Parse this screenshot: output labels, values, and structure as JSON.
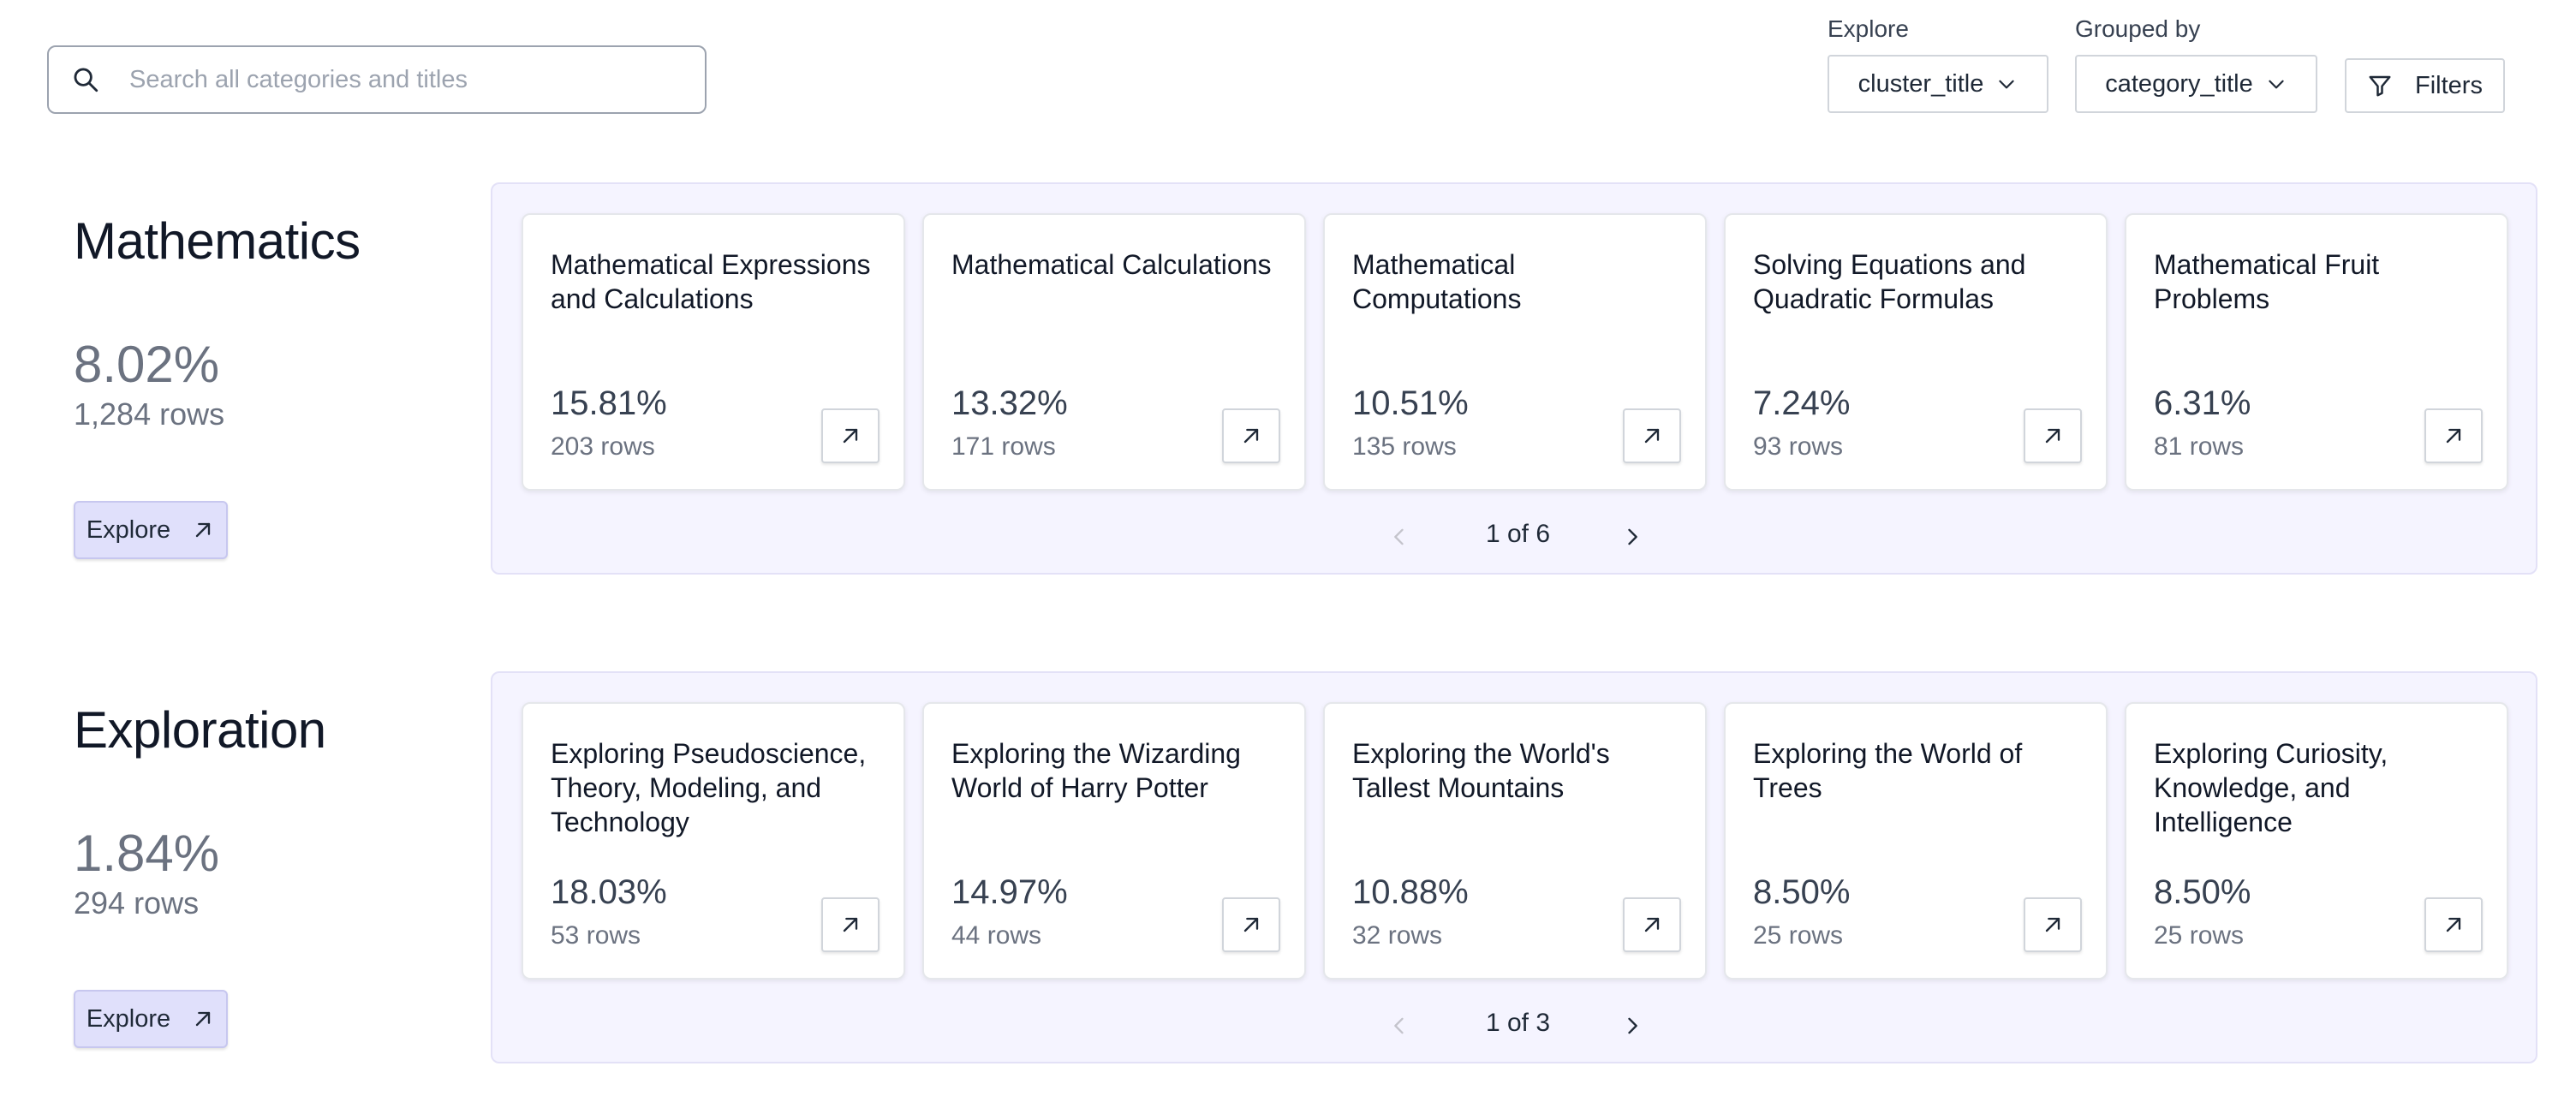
{
  "search": {
    "placeholder": "Search all categories and titles",
    "icon": "search-icon"
  },
  "controls": {
    "explore": {
      "label": "Explore",
      "value": "cluster_title"
    },
    "grouped_by": {
      "label": "Grouped by",
      "value": "category_title"
    },
    "filters_label": "Filters"
  },
  "sections": [
    {
      "title": "Mathematics",
      "percent": "8.02%",
      "rows": "1,284 rows",
      "explore_label": "Explore",
      "page": "1 of 6",
      "cards": [
        {
          "title": "Mathematical Expressions and Calculations",
          "percent": "15.81%",
          "rows": "203 rows"
        },
        {
          "title": "Mathematical Calculations",
          "percent": "13.32%",
          "rows": "171 rows"
        },
        {
          "title": "Mathematical Computations",
          "percent": "10.51%",
          "rows": "135 rows"
        },
        {
          "title": "Solving Equations and Quadratic Formulas",
          "percent": "7.24%",
          "rows": "93 rows"
        },
        {
          "title": "Mathematical Fruit Problems",
          "percent": "6.31%",
          "rows": "81 rows"
        }
      ]
    },
    {
      "title": "Exploration",
      "percent": "1.84%",
      "rows": "294 rows",
      "explore_label": "Explore",
      "page": "1 of 3",
      "cards": [
        {
          "title": "Exploring Pseudoscience, Theory, Modeling, and Technology",
          "percent": "18.03%",
          "rows": "53 rows"
        },
        {
          "title": "Exploring the Wizarding World of Harry Potter",
          "percent": "14.97%",
          "rows": "44 rows"
        },
        {
          "title": "Exploring the World's Tallest Mountains",
          "percent": "10.88%",
          "rows": "32 rows"
        },
        {
          "title": "Exploring the World of Trees",
          "percent": "8.50%",
          "rows": "25 rows"
        },
        {
          "title": "Exploring Curiosity, Knowledge, and Intelligence",
          "percent": "8.50%",
          "rows": "25 rows"
        }
      ]
    }
  ]
}
